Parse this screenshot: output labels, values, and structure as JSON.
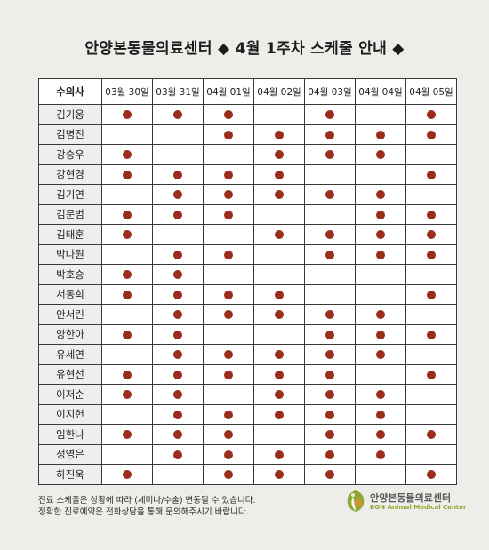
{
  "title": "안양본동물의료센터 ◆ 4월 1주차 스케줄 안내 ◆",
  "table": {
    "header_name": "수의사",
    "dates": [
      "03월 30일",
      "03월 31일",
      "04월 01일",
      "04월 02일",
      "04월 03일",
      "04월 04일",
      "04월 05일"
    ],
    "rows": [
      {
        "name": "김기웅",
        "days": [
          1,
          1,
          1,
          0,
          1,
          0,
          1
        ]
      },
      {
        "name": "김병진",
        "days": [
          0,
          0,
          1,
          1,
          1,
          1,
          1
        ]
      },
      {
        "name": "강승우",
        "days": [
          1,
          0,
          0,
          1,
          1,
          1,
          0
        ]
      },
      {
        "name": "강현경",
        "days": [
          1,
          1,
          1,
          1,
          0,
          0,
          1
        ]
      },
      {
        "name": "김기연",
        "days": [
          0,
          1,
          1,
          1,
          1,
          1,
          0
        ]
      },
      {
        "name": "김문범",
        "days": [
          1,
          1,
          1,
          0,
          0,
          1,
          1
        ]
      },
      {
        "name": "김태훈",
        "days": [
          1,
          0,
          0,
          1,
          1,
          1,
          1
        ]
      },
      {
        "name": "박나원",
        "days": [
          0,
          1,
          1,
          0,
          1,
          1,
          1
        ]
      },
      {
        "name": "박호승",
        "days": [
          1,
          1,
          0,
          0,
          0,
          0,
          0
        ]
      },
      {
        "name": "서동희",
        "days": [
          1,
          1,
          1,
          1,
          0,
          0,
          1
        ]
      },
      {
        "name": "안서린",
        "days": [
          0,
          1,
          1,
          1,
          1,
          1,
          0
        ]
      },
      {
        "name": "양한아",
        "days": [
          1,
          1,
          0,
          0,
          1,
          1,
          1
        ]
      },
      {
        "name": "유세연",
        "days": [
          0,
          1,
          1,
          1,
          1,
          1,
          0
        ]
      },
      {
        "name": "유현선",
        "days": [
          1,
          1,
          1,
          1,
          1,
          0,
          1
        ]
      },
      {
        "name": "이저순",
        "days": [
          1,
          1,
          0,
          1,
          1,
          1,
          0
        ]
      },
      {
        "name": "이지헌",
        "days": [
          0,
          1,
          1,
          1,
          1,
          1,
          0
        ]
      },
      {
        "name": "임한나",
        "days": [
          1,
          1,
          1,
          0,
          1,
          1,
          1
        ]
      },
      {
        "name": "정영은",
        "days": [
          0,
          1,
          1,
          1,
          1,
          1,
          0
        ]
      },
      {
        "name": "하진욱",
        "days": [
          1,
          0,
          1,
          1,
          1,
          0,
          1
        ]
      }
    ]
  },
  "notice": {
    "line1": "진료 스케줄은 상황에 따라 (세미나/수술) 변동될 수 있습니다.",
    "line2": "정확한 진료예약은 전화상담을 통해 문의해주시기 바랍니다."
  },
  "logo": {
    "name_ko": "안양본동물의료센터",
    "name_en": "BON Animal Medical Center"
  },
  "colors": {
    "dot": "#9b2d1c",
    "name_cell_bg": "#eeeeee",
    "logo_green": "#8aa832"
  }
}
